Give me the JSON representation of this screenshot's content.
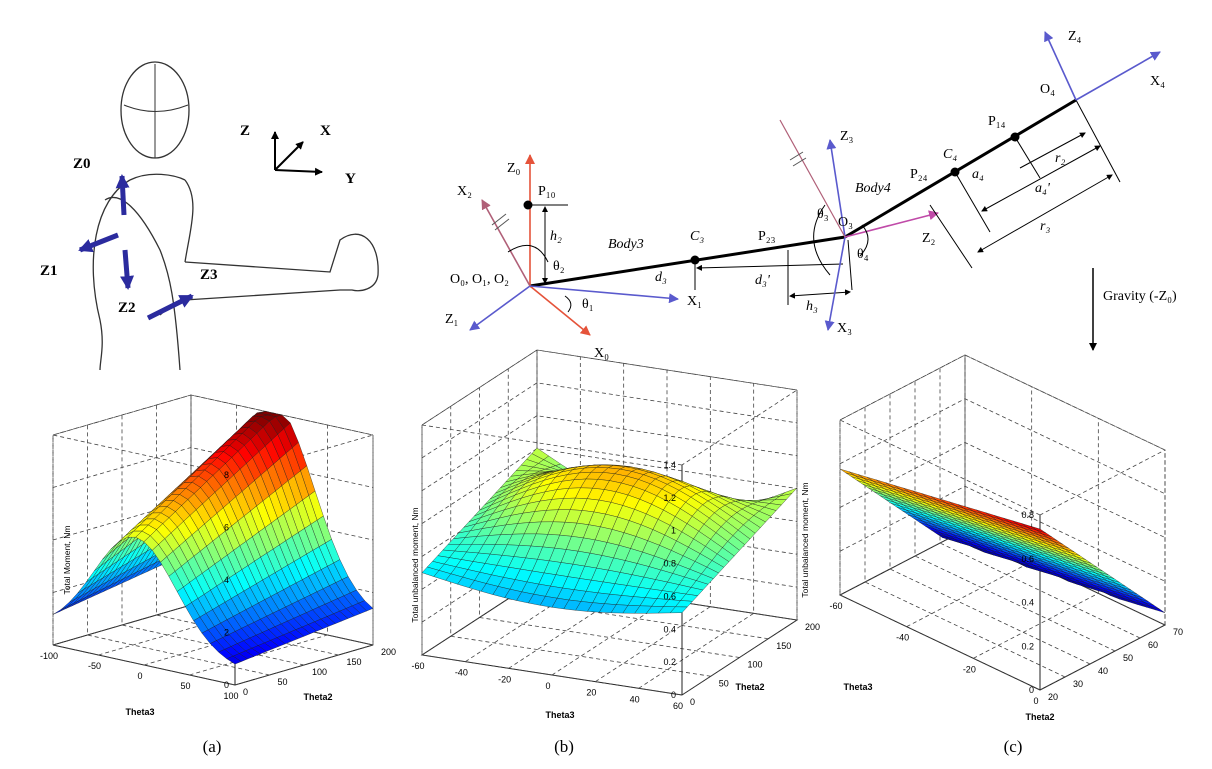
{
  "human_figure": {
    "frame": {
      "z": "Z",
      "x": "X",
      "y": "Y"
    },
    "axes": {
      "z0": "Z0",
      "z1": "Z1",
      "z2": "Z2",
      "z3": "Z3"
    }
  },
  "kinematic_diagram": {
    "origin_label": "O₀, O₁, O₂",
    "z0": "Z₀",
    "x0": "X₀",
    "z1": "Z₁",
    "x1": "X₁",
    "x2": "X₂",
    "p10": "P₁₀",
    "h2": "h₂",
    "theta1": "θ₁",
    "theta2": "θ₂",
    "body3": "Body3",
    "c3": "C₃",
    "d3": "d₃",
    "p23": "P₂₃",
    "d3p": "d₃'",
    "h3": "h₃",
    "z3": "Z₃",
    "x3": "X₃",
    "theta3": "θ₃",
    "theta4": "θ₄",
    "o3": "O₃",
    "z2": "Z₂",
    "body4": "Body4",
    "p24": "P₂₄",
    "c4": "C₄",
    "a4": "a₄",
    "p14": "P₁₄",
    "r2": "r₂",
    "a4p": "a₄'",
    "r3": "r₃",
    "o4": "O₄",
    "z4": "Z₄",
    "x4": "X₄",
    "gravity": "Gravity (-Z₀)"
  },
  "chart_data": [
    {
      "type": "surface3d",
      "panel": "(a)",
      "zlabel": "Total Moment, Nm",
      "xlabel": "Theta3",
      "ylabel": "Theta2",
      "zticks": [
        "0",
        "2",
        "4",
        "6",
        "8"
      ],
      "xticks": [
        "100",
        "50",
        "0",
        "-50",
        "-100"
      ],
      "yticks": [
        "0",
        "50",
        "100",
        "150",
        "200"
      ],
      "zlim": [
        0,
        8
      ]
    },
    {
      "type": "surface3d",
      "panel": "(b)",
      "zlabel": "Total unbalanced moment, Nm",
      "xlabel": "Theta3",
      "ylabel": "Theta2",
      "zticks": [
        "0",
        "0.2",
        "0.4",
        "0.6",
        "0.8",
        "1",
        "1.2",
        "1.4"
      ],
      "xticks": [
        "60",
        "40",
        "20",
        "0",
        "-20",
        "-40",
        "-60"
      ],
      "yticks": [
        "0",
        "50",
        "100",
        "150",
        "200"
      ],
      "zlim": [
        0,
        1.4
      ]
    },
    {
      "type": "surface3d",
      "panel": "(c)",
      "zlabel": "Total unbalanced moment, Nm",
      "xlabel": "Theta3",
      "ylabel": "Theta2",
      "zticks": [
        "0",
        "0.2",
        "0.4",
        "0.6",
        "0.8"
      ],
      "xticks": [
        "0",
        "-20",
        "-40",
        "-60"
      ],
      "yticks": [
        "20",
        "30",
        "40",
        "50",
        "60",
        "70"
      ],
      "zlim": [
        0,
        0.8
      ]
    }
  ]
}
